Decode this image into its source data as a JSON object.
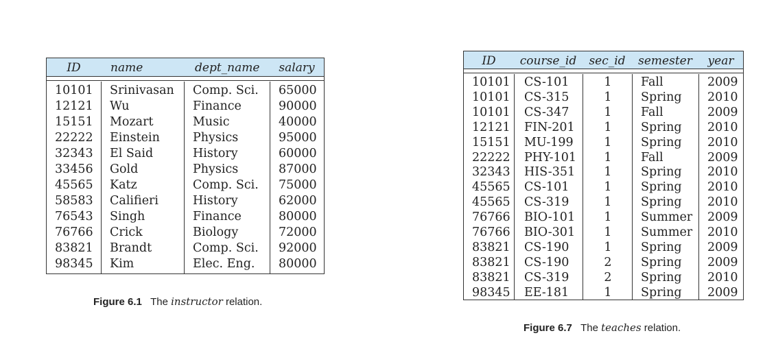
{
  "instructor_table": {
    "headers": [
      "ID",
      "name",
      "dept_name",
      "salary"
    ],
    "rows": [
      [
        "10101",
        "Srinivasan",
        "Comp. Sci.",
        "65000"
      ],
      [
        "12121",
        "Wu",
        "Finance",
        "90000"
      ],
      [
        "15151",
        "Mozart",
        "Music",
        "40000"
      ],
      [
        "22222",
        "Einstein",
        "Physics",
        "95000"
      ],
      [
        "32343",
        "El Said",
        "History",
        "60000"
      ],
      [
        "33456",
        "Gold",
        "Physics",
        "87000"
      ],
      [
        "45565",
        "Katz",
        "Comp. Sci.",
        "75000"
      ],
      [
        "58583",
        "Califieri",
        "History",
        "62000"
      ],
      [
        "76543",
        "Singh",
        "Finance",
        "80000"
      ],
      [
        "76766",
        "Crick",
        "Biology",
        "72000"
      ],
      [
        "83821",
        "Brandt",
        "Comp. Sci.",
        "92000"
      ],
      [
        "98345",
        "Kim",
        "Elec. Eng.",
        "80000"
      ]
    ]
  },
  "instructor_caption": {
    "label": "Figure 6.1",
    "prefix": "The",
    "relation": "instructor",
    "suffix": "relation."
  },
  "teaches_table": {
    "headers": [
      "ID",
      "course_id",
      "sec_id",
      "semester",
      "year"
    ],
    "rows": [
      [
        "10101",
        "CS-101",
        "1",
        "Fall",
        "2009"
      ],
      [
        "10101",
        "CS-315",
        "1",
        "Spring",
        "2010"
      ],
      [
        "10101",
        "CS-347",
        "1",
        "Fall",
        "2009"
      ],
      [
        "12121",
        "FIN-201",
        "1",
        "Spring",
        "2010"
      ],
      [
        "15151",
        "MU-199",
        "1",
        "Spring",
        "2010"
      ],
      [
        "22222",
        "PHY-101",
        "1",
        "Fall",
        "2009"
      ],
      [
        "32343",
        "HIS-351",
        "1",
        "Spring",
        "2010"
      ],
      [
        "45565",
        "CS-101",
        "1",
        "Spring",
        "2010"
      ],
      [
        "45565",
        "CS-319",
        "1",
        "Spring",
        "2010"
      ],
      [
        "76766",
        "BIO-101",
        "1",
        "Summer",
        "2009"
      ],
      [
        "76766",
        "BIO-301",
        "1",
        "Summer",
        "2010"
      ],
      [
        "83821",
        "CS-190",
        "1",
        "Spring",
        "2009"
      ],
      [
        "83821",
        "CS-190",
        "2",
        "Spring",
        "2009"
      ],
      [
        "83821",
        "CS-319",
        "2",
        "Spring",
        "2010"
      ],
      [
        "98345",
        "EE-181",
        "1",
        "Spring",
        "2009"
      ]
    ]
  },
  "teaches_caption": {
    "label": "Figure 6.7",
    "prefix": "The",
    "relation": "teaches",
    "suffix": "relation."
  }
}
